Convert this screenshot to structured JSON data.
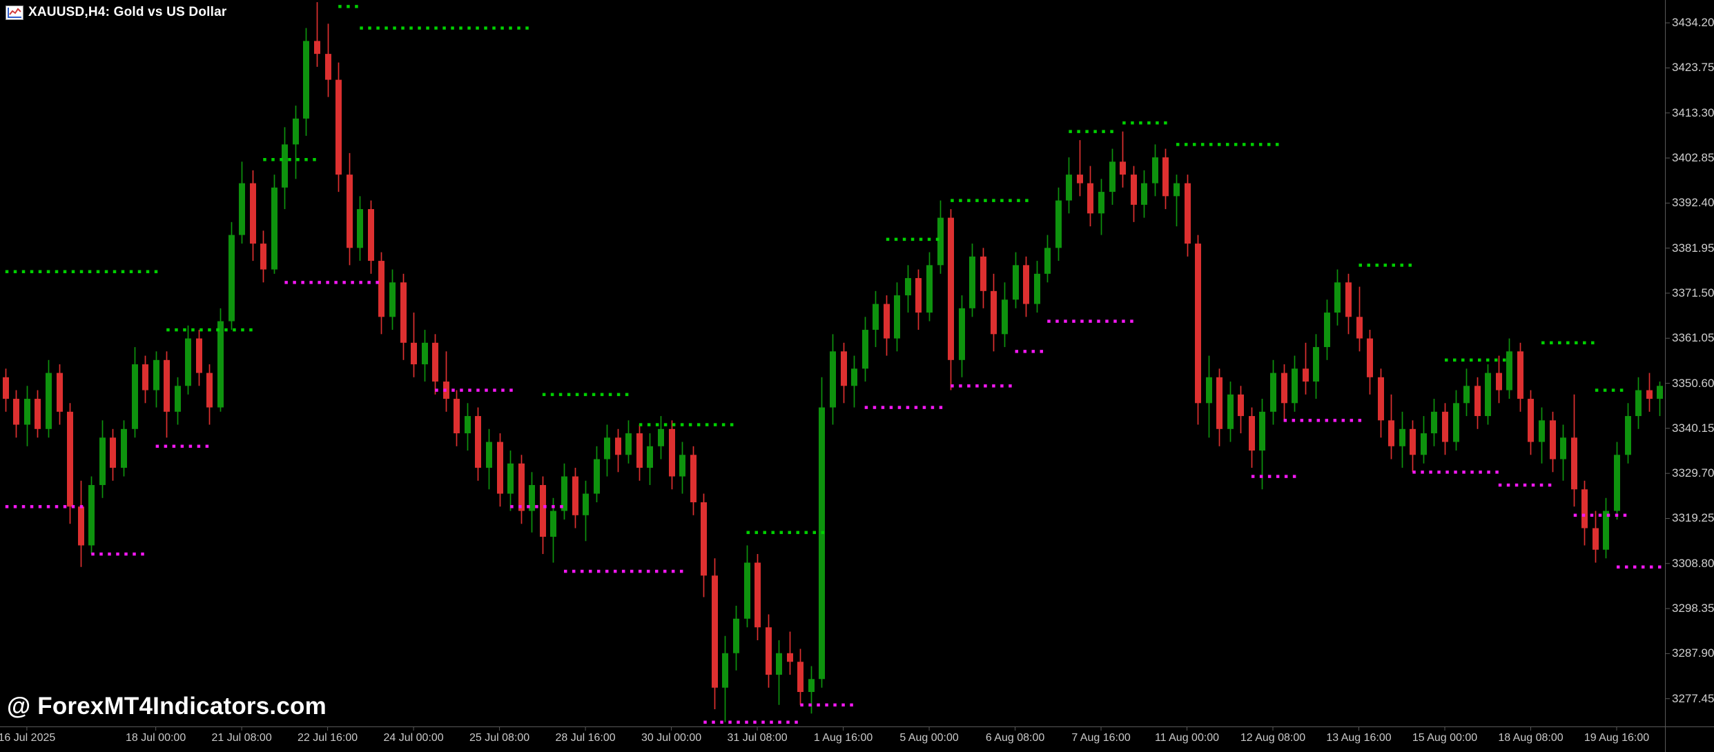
{
  "window": {
    "title": "XAUUSD,H4: Gold vs US Dollar",
    "symbol": "XAUUSD",
    "timeframe": "H4",
    "description": "Gold vs US Dollar"
  },
  "watermark": "@ ForexMT4Indicators.com",
  "colors": {
    "background": "#000000",
    "bull": "#0E930E",
    "bear": "#DD3030",
    "resistance": "#00D000",
    "support": "#F318F3",
    "axis_line": "#5a5a5a",
    "axis_text": "#cfcfcf",
    "title_text": "#ffffff"
  },
  "price_axis": {
    "labels": [
      "3434.20",
      "3423.75",
      "3413.30",
      "3402.85",
      "3392.40",
      "3381.95",
      "3371.50",
      "3361.05",
      "3350.60",
      "3340.15",
      "3329.70",
      "3319.25",
      "3308.80",
      "3298.35",
      "3287.90",
      "3277.45"
    ]
  },
  "time_axis": {
    "labels": [
      {
        "i": 2,
        "t": "16 Jul 2025"
      },
      {
        "i": 14,
        "t": "18 Jul 00:00"
      },
      {
        "i": 22,
        "t": "21 Jul 08:00"
      },
      {
        "i": 30,
        "t": "22 Jul 16:00"
      },
      {
        "i": 38,
        "t": "24 Jul 00:00"
      },
      {
        "i": 46,
        "t": "25 Jul 08:00"
      },
      {
        "i": 54,
        "t": "28 Jul 16:00"
      },
      {
        "i": 62,
        "t": "30 Jul 00:00"
      },
      {
        "i": 70,
        "t": "31 Jul 08:00"
      },
      {
        "i": 78,
        "t": "1 Aug 16:00"
      },
      {
        "i": 86,
        "t": "5 Aug 00:00"
      },
      {
        "i": 94,
        "t": "6 Aug 08:00"
      },
      {
        "i": 102,
        "t": "7 Aug 16:00"
      },
      {
        "i": 110,
        "t": "11 Aug 00:00"
      },
      {
        "i": 118,
        "t": "12 Aug 08:00"
      },
      {
        "i": 126,
        "t": "13 Aug 16:00"
      },
      {
        "i": 134,
        "t": "15 Aug 00:00"
      },
      {
        "i": 142,
        "t": "18 Aug 08:00"
      },
      {
        "i": 150,
        "t": "19 Aug 16:00"
      }
    ]
  },
  "chart_data": {
    "type": "candlestick",
    "title": "XAUUSD,H4: Gold vs US Dollar",
    "symbol": "XAUUSD",
    "timeframe": "H4",
    "ylim": [
      3271.0,
      3439.5
    ],
    "y_tick_step": 10.45,
    "grid": false,
    "candles_format": "[open, high, low, close]",
    "candles": [
      [
        3352,
        3354,
        3344,
        3347
      ],
      [
        3347,
        3349,
        3338,
        3341
      ],
      [
        3341,
        3350,
        3336,
        3347
      ],
      [
        3347,
        3349,
        3338,
        3340
      ],
      [
        3340,
        3356,
        3338,
        3353
      ],
      [
        3353,
        3355,
        3341,
        3344
      ],
      [
        3344,
        3346,
        3318,
        3322
      ],
      [
        3322,
        3328,
        3308,
        3313
      ],
      [
        3313,
        3329,
        3311,
        3327
      ],
      [
        3327,
        3342,
        3324,
        3338
      ],
      [
        3338,
        3340,
        3328,
        3331
      ],
      [
        3331,
        3342,
        3329,
        3340
      ],
      [
        3340,
        3359,
        3338,
        3355
      ],
      [
        3355,
        3357,
        3346,
        3349
      ],
      [
        3349,
        3358,
        3345,
        3356
      ],
      [
        3356,
        3358,
        3338,
        3344
      ],
      [
        3344,
        3352,
        3341,
        3350
      ],
      [
        3350,
        3364,
        3348,
        3361
      ],
      [
        3361,
        3363,
        3350,
        3353
      ],
      [
        3353,
        3355,
        3341,
        3345
      ],
      [
        3345,
        3368,
        3344,
        3365
      ],
      [
        3365,
        3388,
        3363,
        3385
      ],
      [
        3385,
        3402,
        3383,
        3397
      ],
      [
        3397,
        3400,
        3379,
        3383
      ],
      [
        3383,
        3386,
        3374,
        3377
      ],
      [
        3377,
        3399,
        3376,
        3396
      ],
      [
        3396,
        3410,
        3391,
        3406
      ],
      [
        3406,
        3415,
        3398,
        3412
      ],
      [
        3412,
        3433,
        3408,
        3430
      ],
      [
        3430,
        3439,
        3424,
        3427
      ],
      [
        3427,
        3434,
        3417,
        3421
      ],
      [
        3421,
        3425,
        3395,
        3399
      ],
      [
        3399,
        3404,
        3378,
        3382
      ],
      [
        3382,
        3394,
        3379,
        3391
      ],
      [
        3391,
        3393,
        3376,
        3379
      ],
      [
        3379,
        3381,
        3362,
        3366
      ],
      [
        3366,
        3377,
        3363,
        3374
      ],
      [
        3374,
        3376,
        3356,
        3360
      ],
      [
        3360,
        3367,
        3352,
        3355
      ],
      [
        3355,
        3363,
        3351,
        3360
      ],
      [
        3360,
        3362,
        3348,
        3351
      ],
      [
        3351,
        3358,
        3344,
        3347
      ],
      [
        3347,
        3349,
        3336,
        3339
      ],
      [
        3339,
        3346,
        3335,
        3343
      ],
      [
        3343,
        3345,
        3328,
        3331
      ],
      [
        3331,
        3340,
        3326,
        3337
      ],
      [
        3337,
        3339,
        3322,
        3325
      ],
      [
        3325,
        3335,
        3321,
        3332
      ],
      [
        3332,
        3334,
        3318,
        3321
      ],
      [
        3321,
        3330,
        3316,
        3327
      ],
      [
        3327,
        3329,
        3311,
        3315
      ],
      [
        3315,
        3324,
        3309,
        3321
      ],
      [
        3321,
        3332,
        3319,
        3329
      ],
      [
        3329,
        3331,
        3317,
        3320
      ],
      [
        3320,
        3328,
        3314,
        3325
      ],
      [
        3325,
        3336,
        3323,
        3333
      ],
      [
        3333,
        3341,
        3329,
        3338
      ],
      [
        3338,
        3340,
        3330,
        3334
      ],
      [
        3334,
        3342,
        3332,
        3339
      ],
      [
        3339,
        3341,
        3328,
        3331
      ],
      [
        3331,
        3339,
        3327,
        3336
      ],
      [
        3336,
        3343,
        3333,
        3340
      ],
      [
        3340,
        3342,
        3326,
        3329
      ],
      [
        3329,
        3337,
        3325,
        3334
      ],
      [
        3334,
        3336,
        3320,
        3323
      ],
      [
        3323,
        3325,
        3301,
        3306
      ],
      [
        3306,
        3310,
        3275,
        3280
      ],
      [
        3280,
        3292,
        3272,
        3288
      ],
      [
        3288,
        3299,
        3284,
        3296
      ],
      [
        3296,
        3313,
        3294,
        3309
      ],
      [
        3309,
        3311,
        3291,
        3294
      ],
      [
        3294,
        3297,
        3280,
        3283
      ],
      [
        3283,
        3291,
        3276,
        3288
      ],
      [
        3288,
        3293,
        3283,
        3286
      ],
      [
        3286,
        3289,
        3276,
        3279
      ],
      [
        3279,
        3285,
        3274,
        3282
      ],
      [
        3282,
        3352,
        3280,
        3345
      ],
      [
        3345,
        3362,
        3341,
        3358
      ],
      [
        3358,
        3360,
        3346,
        3350
      ],
      [
        3350,
        3357,
        3345,
        3354
      ],
      [
        3354,
        3366,
        3351,
        3363
      ],
      [
        3363,
        3372,
        3359,
        3369
      ],
      [
        3369,
        3371,
        3357,
        3361
      ],
      [
        3361,
        3374,
        3358,
        3371
      ],
      [
        3371,
        3378,
        3367,
        3375
      ],
      [
        3375,
        3377,
        3363,
        3367
      ],
      [
        3367,
        3381,
        3365,
        3378
      ],
      [
        3378,
        3393,
        3376,
        3389
      ],
      [
        3389,
        3391,
        3349,
        3356
      ],
      [
        3356,
        3371,
        3352,
        3368
      ],
      [
        3368,
        3383,
        3366,
        3380
      ],
      [
        3380,
        3382,
        3368,
        3372
      ],
      [
        3372,
        3376,
        3358,
        3362
      ],
      [
        3362,
        3374,
        3359,
        3370
      ],
      [
        3370,
        3381,
        3368,
        3378
      ],
      [
        3378,
        3380,
        3366,
        3369
      ],
      [
        3369,
        3379,
        3367,
        3376
      ],
      [
        3376,
        3385,
        3374,
        3382
      ],
      [
        3382,
        3396,
        3379,
        3393
      ],
      [
        3393,
        3403,
        3390,
        3399
      ],
      [
        3399,
        3407,
        3394,
        3397
      ],
      [
        3397,
        3401,
        3387,
        3390
      ],
      [
        3390,
        3398,
        3385,
        3395
      ],
      [
        3395,
        3405,
        3392,
        3402
      ],
      [
        3402,
        3409,
        3396,
        3399
      ],
      [
        3399,
        3401,
        3388,
        3392
      ],
      [
        3392,
        3400,
        3389,
        3397
      ],
      [
        3397,
        3406,
        3394,
        3403
      ],
      [
        3403,
        3405,
        3391,
        3394
      ],
      [
        3394,
        3399,
        3387,
        3397
      ],
      [
        3397,
        3399,
        3380,
        3383
      ],
      [
        3383,
        3385,
        3341,
        3346
      ],
      [
        3346,
        3357,
        3338,
        3352
      ],
      [
        3352,
        3354,
        3336,
        3340
      ],
      [
        3340,
        3351,
        3337,
        3348
      ],
      [
        3348,
        3350,
        3339,
        3343
      ],
      [
        3343,
        3345,
        3331,
        3335
      ],
      [
        3335,
        3347,
        3326,
        3344
      ],
      [
        3344,
        3356,
        3341,
        3353
      ],
      [
        3353,
        3355,
        3342,
        3346
      ],
      [
        3346,
        3357,
        3344,
        3354
      ],
      [
        3354,
        3360,
        3348,
        3351
      ],
      [
        3351,
        3362,
        3347,
        3359
      ],
      [
        3359,
        3370,
        3356,
        3367
      ],
      [
        3367,
        3377,
        3364,
        3374
      ],
      [
        3374,
        3376,
        3362,
        3366
      ],
      [
        3366,
        3373,
        3358,
        3361
      ],
      [
        3361,
        3363,
        3348,
        3352
      ],
      [
        3352,
        3354,
        3338,
        3342
      ],
      [
        3342,
        3348,
        3333,
        3336
      ],
      [
        3336,
        3344,
        3331,
        3340
      ],
      [
        3340,
        3342,
        3330,
        3334
      ],
      [
        3334,
        3343,
        3332,
        3339
      ],
      [
        3339,
        3347,
        3336,
        3344
      ],
      [
        3344,
        3346,
        3334,
        3337
      ],
      [
        3337,
        3349,
        3335,
        3346
      ],
      [
        3346,
        3354,
        3343,
        3350
      ],
      [
        3350,
        3352,
        3340,
        3343
      ],
      [
        3343,
        3355,
        3341,
        3353
      ],
      [
        3353,
        3357,
        3346,
        3349
      ],
      [
        3349,
        3361,
        3347,
        3358
      ],
      [
        3358,
        3360,
        3344,
        3347
      ],
      [
        3347,
        3349,
        3334,
        3337
      ],
      [
        3337,
        3345,
        3332,
        3342
      ],
      [
        3342,
        3344,
        3330,
        3333
      ],
      [
        3333,
        3341,
        3328,
        3338
      ],
      [
        3338,
        3348,
        3322,
        3326
      ],
      [
        3326,
        3328,
        3313,
        3317
      ],
      [
        3317,
        3321,
        3309,
        3312
      ],
      [
        3312,
        3324,
        3310,
        3321
      ],
      [
        3321,
        3337,
        3319,
        3334
      ],
      [
        3334,
        3346,
        3332,
        3343
      ],
      [
        3343,
        3352,
        3340,
        3349
      ],
      [
        3349,
        3353,
        3344,
        3347
      ],
      [
        3347,
        3351,
        3343,
        3350
      ]
    ],
    "indicator": {
      "name": "dotted-support-resistance-levels",
      "style": "dots",
      "segments_format": "[start_index, end_index, price]",
      "resistance": [
        [
          0,
          14,
          3376.5
        ],
        [
          15,
          23,
          3363
        ],
        [
          24,
          29,
          3402.5
        ],
        [
          31,
          33,
          3438
        ],
        [
          33,
          49,
          3433
        ],
        [
          50,
          58,
          3348
        ],
        [
          59,
          68,
          3341
        ],
        [
          69,
          76,
          3316
        ],
        [
          82,
          87,
          3384
        ],
        [
          88,
          95,
          3393
        ],
        [
          99,
          103,
          3409
        ],
        [
          104,
          108,
          3411
        ],
        [
          109,
          119,
          3406
        ],
        [
          126,
          131,
          3378
        ],
        [
          134,
          140,
          3356
        ],
        [
          143,
          148,
          3360
        ],
        [
          148,
          151,
          3349
        ]
      ],
      "support": [
        [
          0,
          7,
          3322
        ],
        [
          8,
          13,
          3311
        ],
        [
          14,
          19,
          3336
        ],
        [
          26,
          35,
          3374
        ],
        [
          40,
          47,
          3349
        ],
        [
          47,
          52,
          3322
        ],
        [
          52,
          63,
          3307
        ],
        [
          65,
          74,
          3272
        ],
        [
          74,
          79,
          3276
        ],
        [
          80,
          87,
          3345
        ],
        [
          88,
          94,
          3350
        ],
        [
          94,
          97,
          3358
        ],
        [
          97,
          105,
          3365
        ],
        [
          116,
          120,
          3329
        ],
        [
          119,
          126,
          3342
        ],
        [
          131,
          139,
          3330
        ],
        [
          139,
          144,
          3327
        ],
        [
          146,
          151,
          3320
        ],
        [
          150,
          154,
          3308
        ]
      ]
    }
  }
}
